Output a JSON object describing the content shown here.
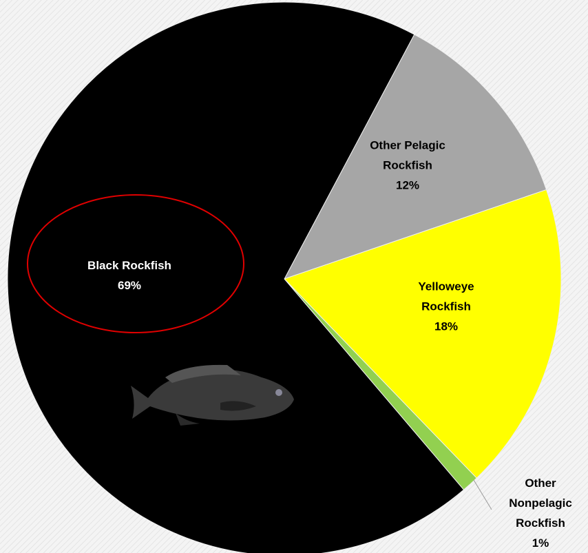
{
  "chart_data": {
    "type": "pie",
    "categories": [
      "Other Pelagic Rockfish",
      "Yelloweye Rockfish",
      "Other Nonpelagic Rockfish",
      "Black Rockfish"
    ],
    "values": [
      12,
      18,
      1,
      69
    ],
    "value_labels": [
      "12%",
      "18%",
      "1%",
      "69%"
    ],
    "colors": [
      "#a6a6a6",
      "#ffff00",
      "#92d050",
      "#000000"
    ]
  }
}
